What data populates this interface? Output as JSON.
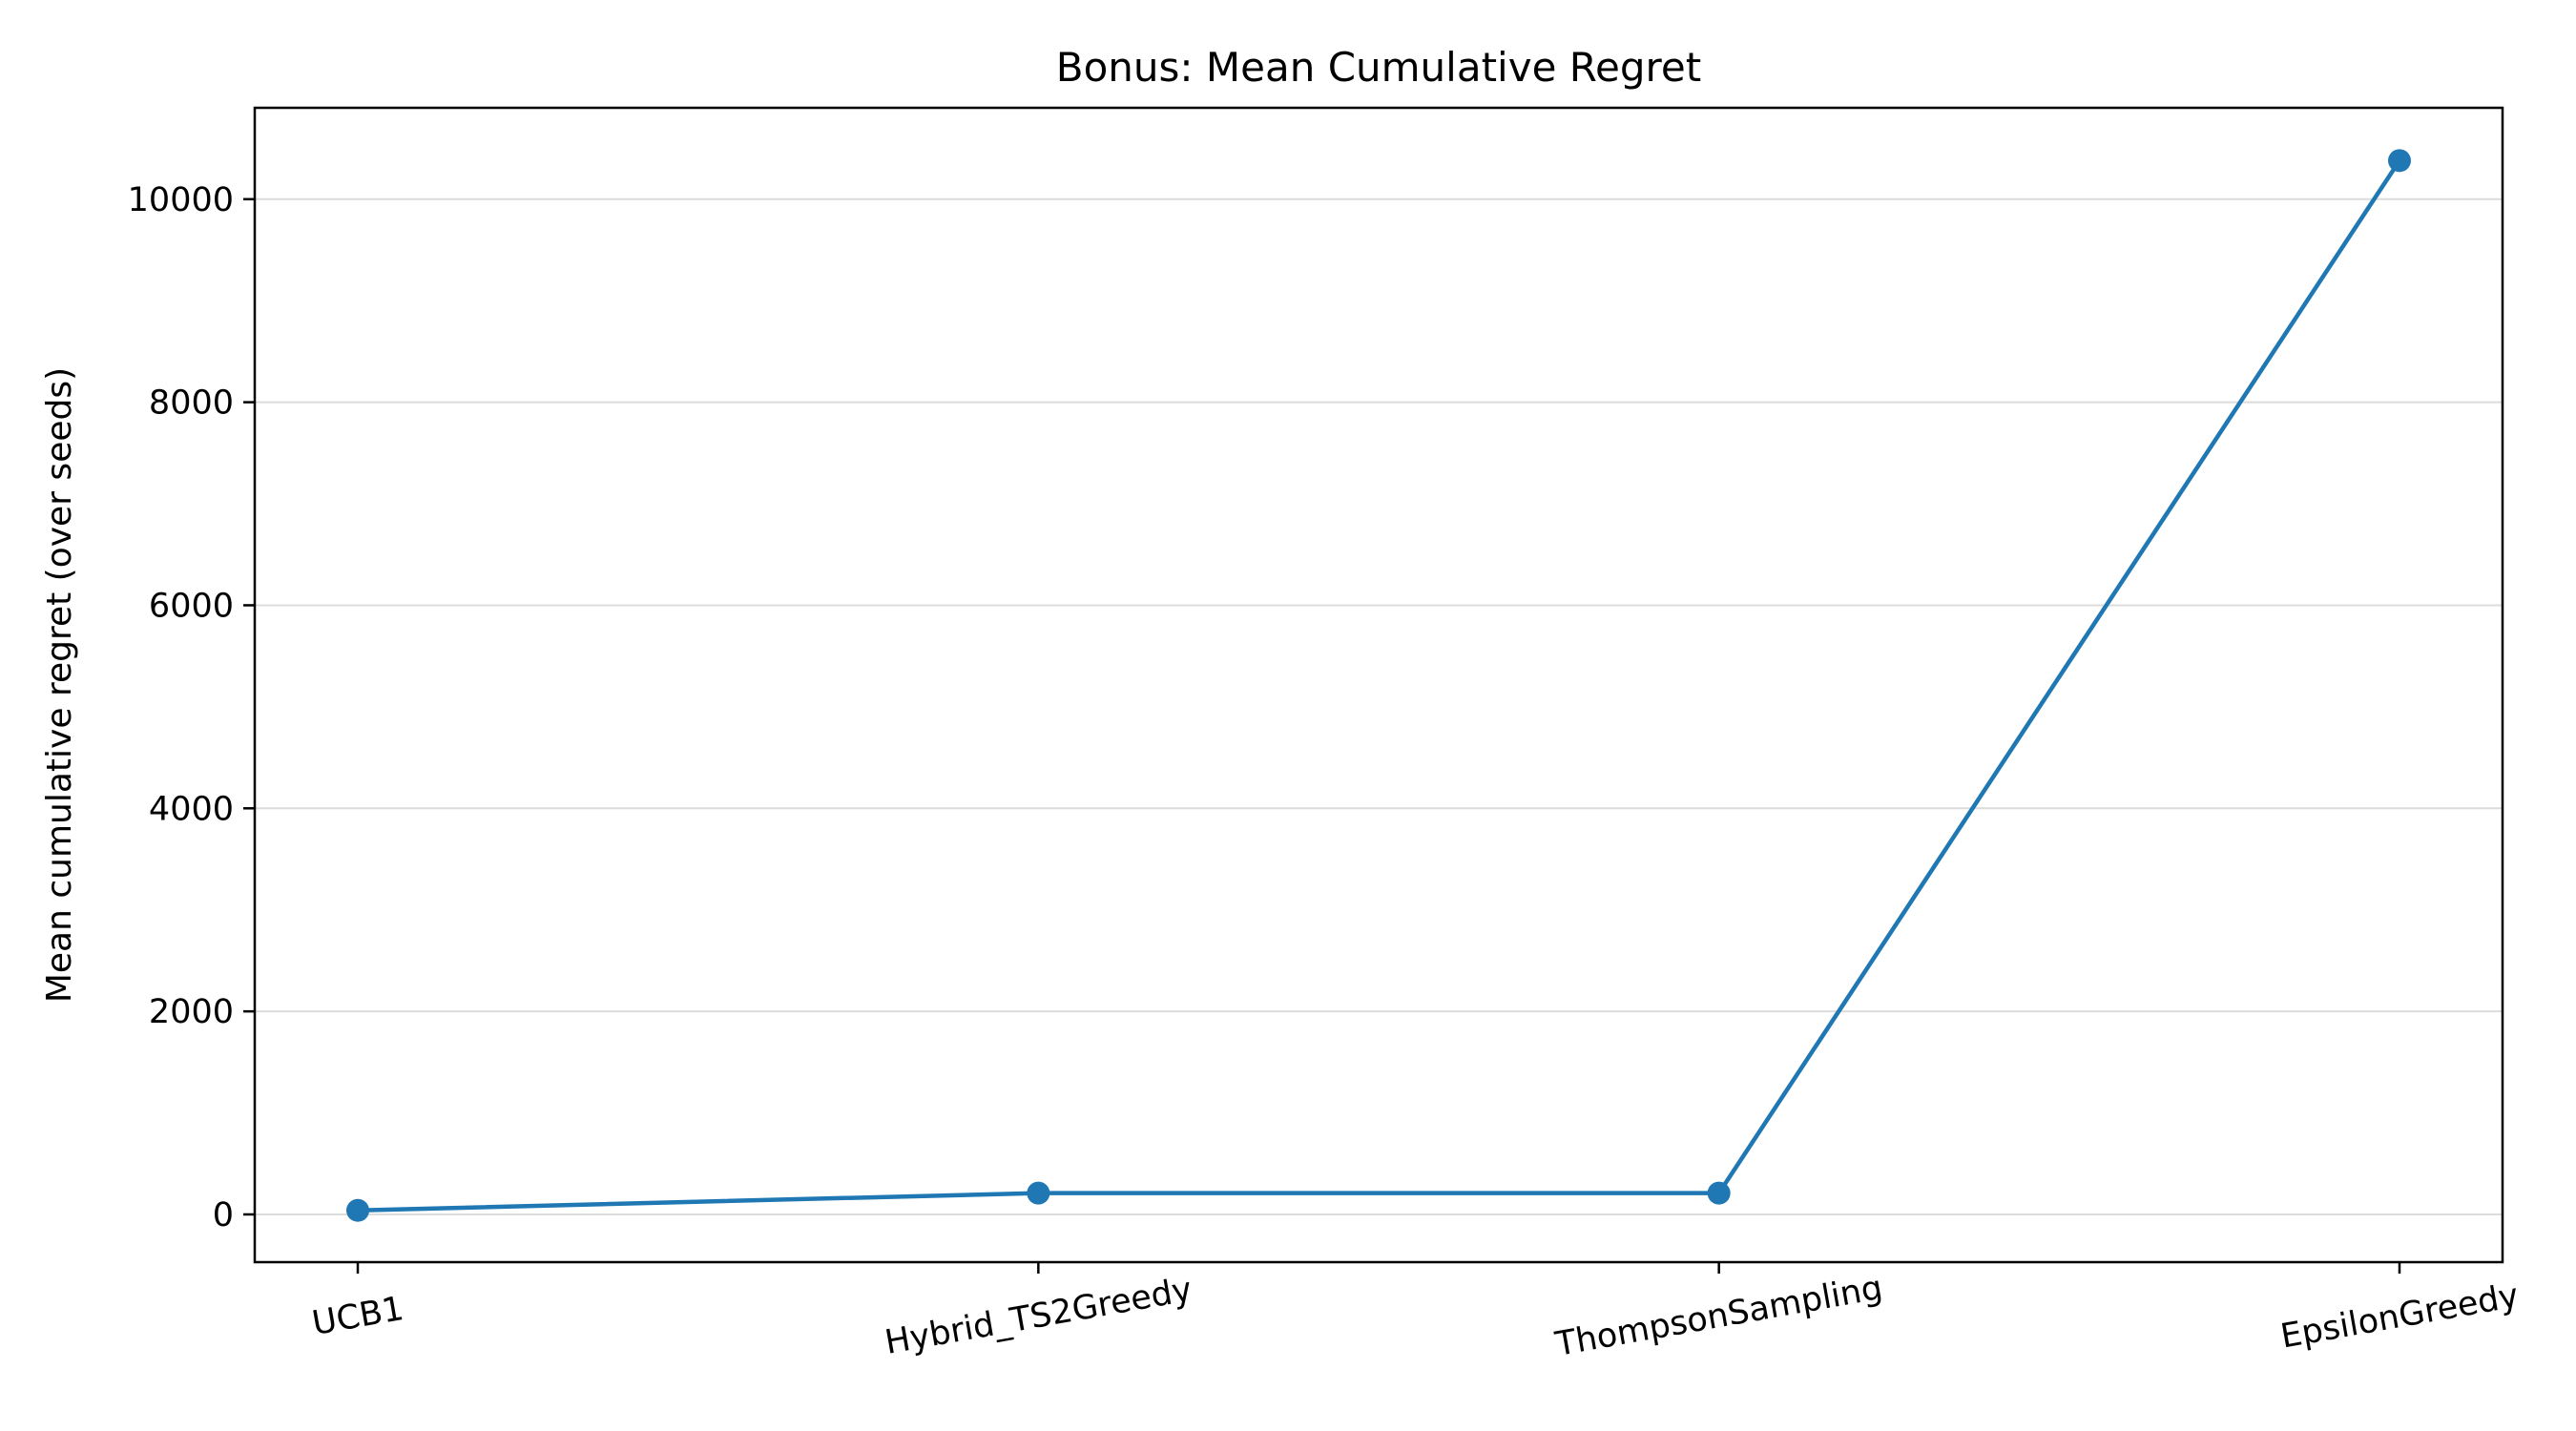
{
  "chart_data": {
    "type": "line",
    "title": "Bonus: Mean Cumulative Regret",
    "xlabel": "",
    "ylabel": "Mean cumulative regret (over seeds)",
    "categories": [
      "UCB1",
      "Hybrid_TS2Greedy",
      "ThompsonSampling",
      "EpsilonGreedy"
    ],
    "series": [
      {
        "values": [
          40,
          210,
          210,
          10380
        ]
      }
    ],
    "ylim": [
      -470,
      10900
    ],
    "yticks": [
      0,
      2000,
      4000,
      6000,
      8000,
      10000
    ],
    "ytick_labels": [
      "0",
      "2000",
      "4000",
      "6000",
      "8000",
      "10000"
    ],
    "grid": "y",
    "xtick_rotation": -10,
    "color": "#1f77b4"
  }
}
